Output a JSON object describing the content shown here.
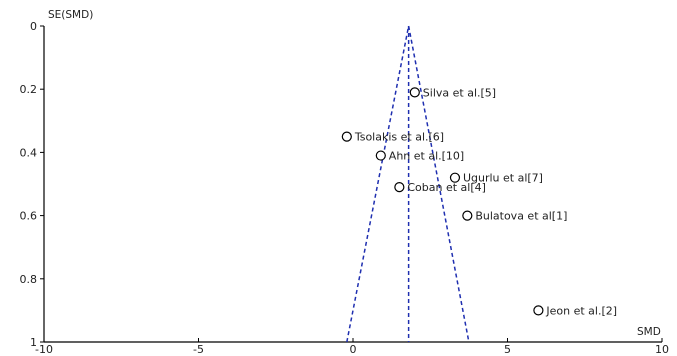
{
  "chart_data": {
    "type": "scatter",
    "title": "",
    "xlabel": "SMD",
    "ylabel": "SE(SMD)",
    "xlim": [
      -10,
      10
    ],
    "ylim": [
      0,
      1
    ],
    "y_inverted": true,
    "x_ticks": [
      -10,
      -5,
      0,
      5,
      10
    ],
    "x_tick_labels": [
      "-10",
      "-5",
      "0",
      "5",
      "10"
    ],
    "y_ticks": [
      0,
      0.2,
      0.4,
      0.6,
      0.8,
      1
    ],
    "y_tick_labels": [
      "0",
      "0.2",
      "0.4",
      "0.6",
      "0.8",
      "1"
    ],
    "grid": false,
    "pooled_estimate": 1.8,
    "funnel": {
      "apex": [
        1.8,
        0
      ],
      "base_left": [
        -0.2,
        1
      ],
      "base_right": [
        3.75,
        1
      ]
    },
    "points": [
      {
        "label": "Silva et al.[5]",
        "x": 2.0,
        "y": 0.21
      },
      {
        "label": "Tsolakis et al.[6]",
        "x": -0.2,
        "y": 0.35
      },
      {
        "label": "Ahn et al.[10]",
        "x": 0.9,
        "y": 0.41
      },
      {
        "label": "Ugurlu et al[7]",
        "x": 3.3,
        "y": 0.48
      },
      {
        "label": "Coban et al[4]",
        "x": 1.5,
        "y": 0.51
      },
      {
        "label": "Bulatova et al[1]",
        "x": 3.7,
        "y": 0.6
      },
      {
        "label": "Jeon et al.[2]",
        "x": 6.0,
        "y": 0.9
      }
    ]
  }
}
